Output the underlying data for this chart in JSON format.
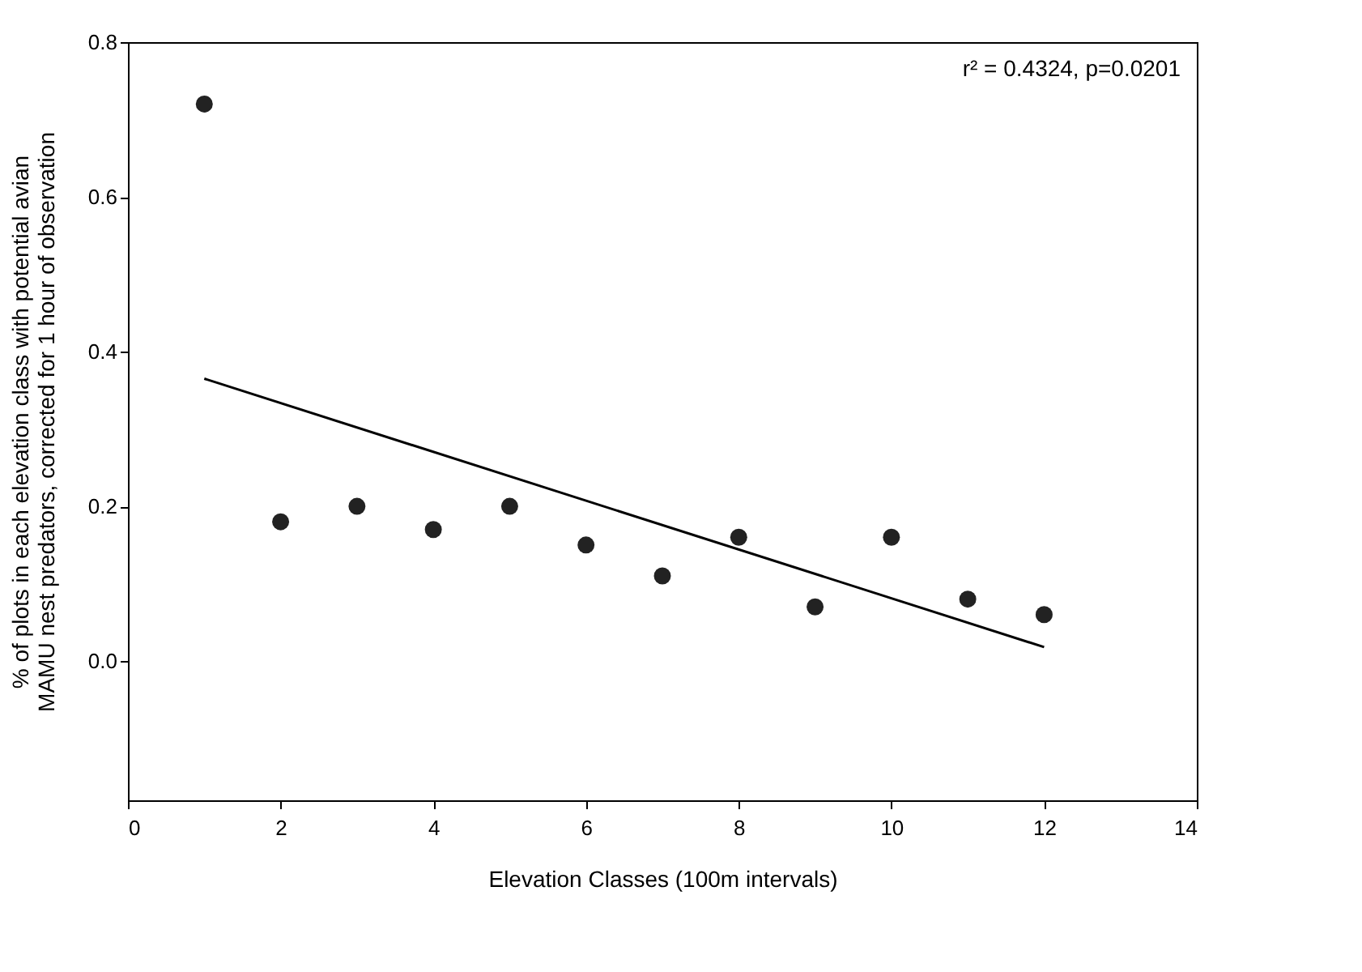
{
  "chart_data": {
    "type": "scatter",
    "xlabel": "Elevation Classes (100m intervals)",
    "ylabel": "% of plots in each elevation class with potential avian\nMAMU nest predators, corrected for 1 hour of observation",
    "x": [
      1,
      2,
      3,
      4,
      5,
      6,
      7,
      8,
      9,
      10,
      11,
      12
    ],
    "series": [
      {
        "color": "#222222",
        "marker": "circle",
        "values": [
          0.72,
          0.18,
          0.2,
          0.17,
          0.2,
          0.15,
          0.11,
          0.16,
          0.07,
          0.16,
          0.08,
          0.06
        ]
      },
      {
        "type": "line",
        "color": "#000000",
        "line_style": "solid",
        "x": [
          1,
          12
        ],
        "values": [
          0.365,
          0.018
        ]
      }
    ],
    "xlim": [
      0,
      14
    ],
    "xticks": [
      0,
      2,
      4,
      6,
      8,
      10,
      12,
      14
    ],
    "ylim": [
      -0.18,
      0.8
    ],
    "yticks": [
      {
        "value": 0,
        "label": "0.0"
      },
      0.2,
      0.4,
      0.6,
      0.8
    ],
    "annotations": [
      "r² = 0.4324, p=0.0201"
    ],
    "grid": false
  }
}
